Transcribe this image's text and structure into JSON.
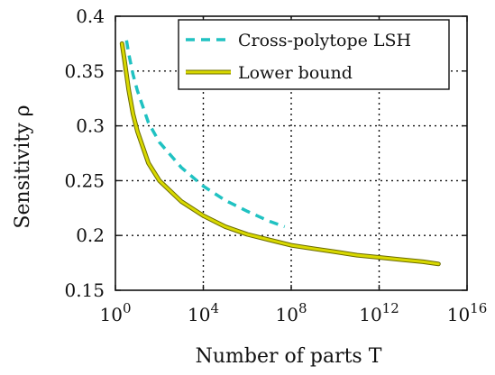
{
  "chart_data": {
    "type": "line",
    "xlabel": "Number of parts T",
    "ylabel": "Sensitivity ρ",
    "x_scale": "log10",
    "xlim": [
      1,
      1e+16
    ],
    "ylim": [
      0.15,
      0.4
    ],
    "grid": true,
    "legend_position": "top-right",
    "x_ticks": [
      {
        "value": 1,
        "base": "10",
        "exp": "0"
      },
      {
        "value": 10000.0,
        "base": "10",
        "exp": "4"
      },
      {
        "value": 100000000.0,
        "base": "10",
        "exp": "8"
      },
      {
        "value": 1000000000000.0,
        "base": "10",
        "exp": "12"
      },
      {
        "value": 1e+16,
        "base": "10",
        "exp": "16"
      }
    ],
    "y_ticks": [
      {
        "value": 0.15,
        "label": "0.15"
      },
      {
        "value": 0.2,
        "label": "0.2"
      },
      {
        "value": 0.25,
        "label": "0.25"
      },
      {
        "value": 0.3,
        "label": "0.3"
      },
      {
        "value": 0.35,
        "label": "0.35"
      },
      {
        "value": 0.4,
        "label": "0.4"
      }
    ],
    "series": [
      {
        "name": "Cross-polytope LSH",
        "color": "#20c2c2",
        "style": "dashed",
        "x": [
          3.2,
          4,
          6.3,
          10,
          31.6,
          100,
          1000,
          10000,
          100000,
          1000000,
          10000000,
          50000000
        ],
        "y": [
          0.378,
          0.366,
          0.347,
          0.332,
          0.303,
          0.285,
          0.262,
          0.245,
          0.232,
          0.222,
          0.213,
          0.208
        ]
      },
      {
        "name": "Lower bound",
        "color": "#d8d800",
        "style": "solid",
        "x": [
          2,
          2.5,
          4,
          6.3,
          10,
          31.6,
          100,
          1000,
          10000,
          100000,
          1000000,
          10000000,
          100000000,
          1000000000,
          10000000000,
          100000000000,
          1000000000000,
          10000000000000,
          100000000000000,
          500000000000000
        ],
        "y": [
          0.375,
          0.362,
          0.333,
          0.311,
          0.295,
          0.266,
          0.25,
          0.231,
          0.218,
          0.208,
          0.201,
          0.196,
          0.191,
          0.188,
          0.185,
          0.182,
          0.18,
          0.178,
          0.176,
          0.174
        ]
      }
    ]
  }
}
